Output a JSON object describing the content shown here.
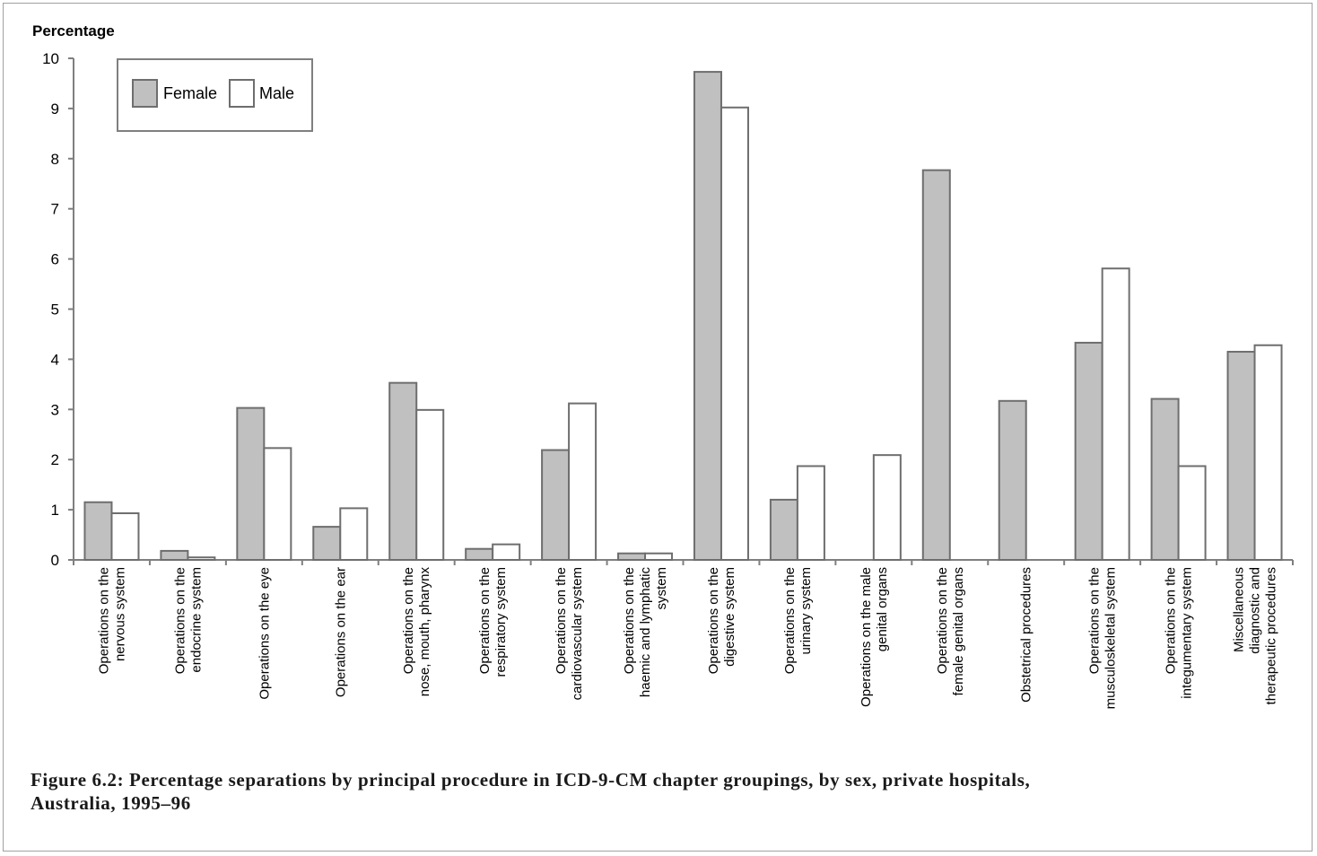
{
  "chart_data": {
    "type": "bar",
    "title": "",
    "ylabel": "Percentage",
    "xlabel": "",
    "ylim": [
      0,
      10
    ],
    "yticks": [
      0,
      1,
      2,
      3,
      4,
      5,
      6,
      7,
      8,
      9,
      10
    ],
    "grid": false,
    "legend_position": "top-left",
    "categories": [
      [
        "Operations on the",
        "nervous system"
      ],
      [
        "Operations on the",
        "endocrine  system"
      ],
      [
        "Operations on the eye"
      ],
      [
        "Operations on the ear"
      ],
      [
        "Operations on the",
        "nose, mouth, pharynx"
      ],
      [
        "Operations on the",
        "respiratory  system"
      ],
      [
        "Operations on the",
        "cardiovascular  system"
      ],
      [
        "Operations on the",
        "haemic and lymphatic",
        "system"
      ],
      [
        "Operations on the",
        "digestive  system"
      ],
      [
        "Operations on the",
        "urinary system"
      ],
      [
        "Operations on the male",
        "genital organs"
      ],
      [
        "Operations on the",
        "female genital organs"
      ],
      [
        "Obstetrical procedures"
      ],
      [
        "Operations on the",
        "musculoskeletal  system"
      ],
      [
        "Operations on the",
        "integumentary  system"
      ],
      [
        "Miscellaneous",
        "diagnostic  and",
        "therapeutic procedures"
      ]
    ],
    "series": [
      {
        "name": "Female",
        "color": "#c0c0c0",
        "values": [
          1.15,
          0.18,
          3.03,
          0.66,
          3.53,
          0.22,
          2.19,
          0.13,
          9.73,
          1.2,
          0,
          7.77,
          3.17,
          4.33,
          3.21,
          4.15
        ]
      },
      {
        "name": "Male",
        "color": "#ffffff",
        "values": [
          0.93,
          0.05,
          2.23,
          1.03,
          2.99,
          0.31,
          3.12,
          0.13,
          9.02,
          1.87,
          2.09,
          0,
          0,
          5.81,
          1.87,
          4.28
        ]
      }
    ]
  },
  "caption": "Figure 6.2: Percentage separations by principal procedure in ICD-9-CM chapter groupings, by sex, private hospitals, Australia, 1995–96"
}
